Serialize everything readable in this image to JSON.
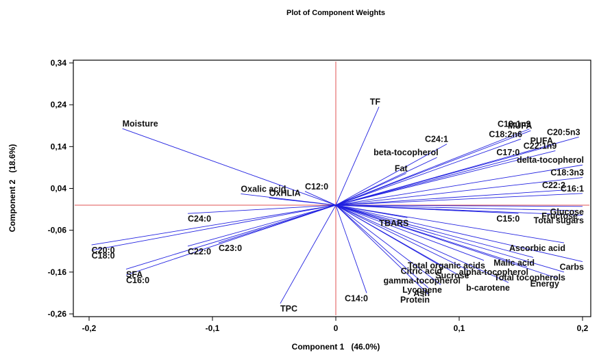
{
  "chart_data": {
    "type": "scatter",
    "title": "Plot of Component Weights",
    "xlabel": "Component 1   (46.0%)",
    "ylabel": "Component 2   (18.6%)",
    "xlim": [
      -0.2,
      0.2
    ],
    "ylim": [
      -0.26,
      0.34
    ],
    "xticks": [
      "-0,2",
      "-0,1",
      "0",
      "0,1",
      "0,2"
    ],
    "yticks": [
      "-0,26",
      "-0,16",
      "-0,06",
      "0,04",
      "0,14",
      "0,24",
      "0,34"
    ],
    "colors": {
      "vector": "#2020e0",
      "reference_line": "#e05050",
      "frame": "#000000"
    },
    "vectors": [
      {
        "label": "TF",
        "x": 0.035,
        "y": 0.235
      },
      {
        "label": "Moisture",
        "x": -0.173,
        "y": 0.183
      },
      {
        "label": "C18:1n9",
        "x": 0.157,
        "y": 0.182
      },
      {
        "label": "MUFA",
        "x": 0.158,
        "y": 0.178
      },
      {
        "label": "C20:5n3",
        "x": 0.197,
        "y": 0.163
      },
      {
        "label": "C18:2n6",
        "x": 0.15,
        "y": 0.158
      },
      {
        "label": "C24:1",
        "x": 0.09,
        "y": 0.146
      },
      {
        "label": "PUFA",
        "x": 0.175,
        "y": 0.142
      },
      {
        "label": "C22:1n9",
        "x": 0.178,
        "y": 0.13
      },
      {
        "label": "beta-tocopherol",
        "x": 0.082,
        "y": 0.114
      },
      {
        "label": "C17:0",
        "x": 0.148,
        "y": 0.114
      },
      {
        "label": "delta-tocopherol",
        "x": 0.2,
        "y": 0.096
      },
      {
        "label": "Fat",
        "x": 0.057,
        "y": 0.076
      },
      {
        "label": "C18:3n3",
        "x": 0.2,
        "y": 0.066
      },
      {
        "label": "C12:0",
        "x": -0.025,
        "y": 0.033
      },
      {
        "label": "Oxalic acid",
        "x": -0.077,
        "y": 0.027
      },
      {
        "label": "OxHLIA",
        "x": -0.054,
        "y": 0.017
      },
      {
        "label": "C22:2",
        "x": 0.185,
        "y": 0.036
      },
      {
        "label": "C16:1",
        "x": 0.2,
        "y": 0.028
      },
      {
        "label": "Glucose",
        "x": 0.2,
        "y": -0.003
      },
      {
        "label": "Fructose",
        "x": 0.195,
        "y": -0.013
      },
      {
        "label": "C24:0",
        "x": -0.12,
        "y": -0.02
      },
      {
        "label": "C15:0",
        "x": 0.148,
        "y": -0.02
      },
      {
        "label": "Total sugars",
        "x": 0.2,
        "y": -0.024
      },
      {
        "label": "TBARS",
        "x": 0.058,
        "y": -0.03
      },
      {
        "label": "C20:0",
        "x": -0.198,
        "y": -0.095
      },
      {
        "label": "C23:0",
        "x": -0.095,
        "y": -0.09
      },
      {
        "label": "C22:0",
        "x": -0.12,
        "y": -0.098
      },
      {
        "label": "C18:0",
        "x": -0.198,
        "y": -0.108
      },
      {
        "label": "Ascorbic acid",
        "x": 0.185,
        "y": -0.09
      },
      {
        "label": "Malic acid",
        "x": 0.16,
        "y": -0.125
      },
      {
        "label": "Total organic acids",
        "x": 0.12,
        "y": -0.132
      },
      {
        "label": "Carbs",
        "x": 0.2,
        "y": -0.135
      },
      {
        "label": "Citric acid",
        "x": 0.085,
        "y": -0.145
      },
      {
        "label": "alpha-tocopherol",
        "x": 0.155,
        "y": -0.147
      },
      {
        "label": "Sucrose",
        "x": 0.107,
        "y": -0.155
      },
      {
        "label": "SFA",
        "x": -0.17,
        "y": -0.153
      },
      {
        "label": "Total tocopherols",
        "x": 0.185,
        "y": -0.16
      },
      {
        "label": "gamma-tocopherol",
        "x": 0.1,
        "y": -0.168
      },
      {
        "label": "C16:0",
        "x": -0.17,
        "y": -0.167
      },
      {
        "label": "Energy",
        "x": 0.18,
        "y": -0.175
      },
      {
        "label": "b-carotene",
        "x": 0.14,
        "y": -0.185
      },
      {
        "label": "Lycopene",
        "x": 0.085,
        "y": -0.19
      },
      {
        "label": "Ash",
        "x": 0.075,
        "y": -0.198
      },
      {
        "label": "Protein",
        "x": 0.075,
        "y": -0.213
      },
      {
        "label": "C14:0",
        "x": 0.025,
        "y": -0.21
      },
      {
        "label": "TPC",
        "x": -0.045,
        "y": -0.235
      }
    ]
  }
}
